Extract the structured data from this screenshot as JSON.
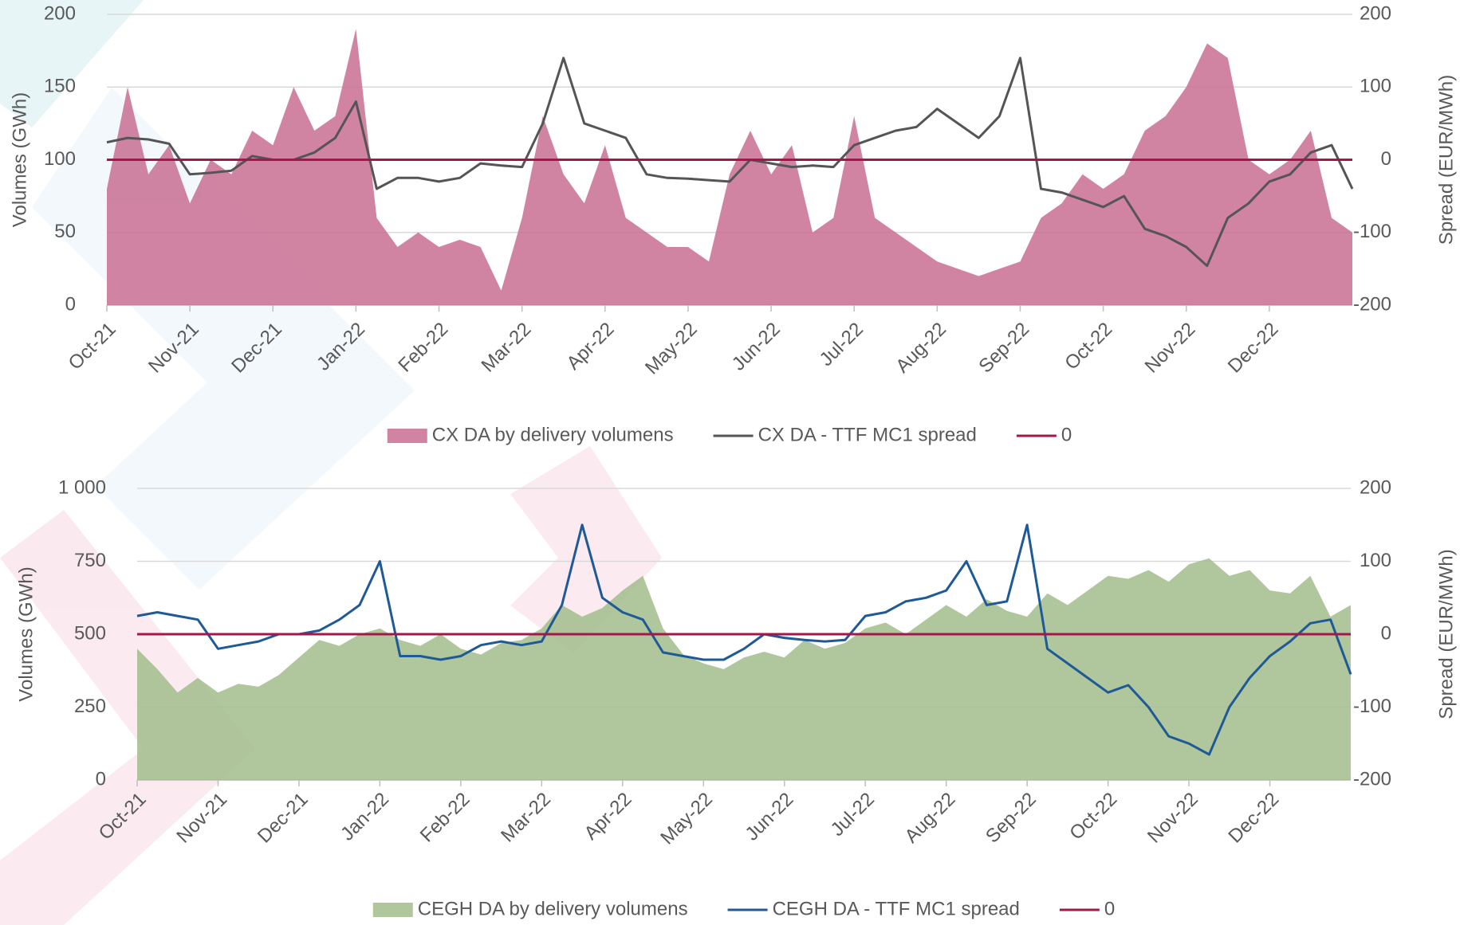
{
  "chart_data": [
    {
      "type": "combo",
      "ylabel": "Volumes (GWh)",
      "y2label": "Spread (EUR/MWh)",
      "categories": [
        "Oct-21",
        null,
        null,
        null,
        "Nov-21",
        null,
        null,
        null,
        "Dec-21",
        null,
        null,
        null,
        "Jan-22",
        null,
        null,
        null,
        "Feb-22",
        null,
        null,
        null,
        "Mar-22",
        null,
        null,
        null,
        "Apr-22",
        null,
        null,
        null,
        "May-22",
        null,
        null,
        null,
        "Jun-22",
        null,
        null,
        null,
        "Jul-22",
        null,
        null,
        null,
        "Aug-22",
        null,
        null,
        null,
        "Sep-22",
        null,
        null,
        null,
        "Oct-22",
        null,
        null,
        null,
        "Nov-22",
        null,
        null,
        null,
        "Dec-22",
        null,
        null,
        null,
        null
      ],
      "ylim": [
        0,
        200
      ],
      "yticks": [
        0,
        50,
        100,
        150,
        200
      ],
      "y2lim": [
        -200,
        200
      ],
      "y2ticks": [
        -200,
        -100,
        0,
        100,
        200
      ],
      "grid": true,
      "series": [
        {
          "name": "CX DA by delivery volumens",
          "type": "area",
          "color": "#c96f92",
          "values": [
            80,
            150,
            90,
            110,
            70,
            100,
            90,
            120,
            110,
            150,
            120,
            130,
            190,
            60,
            40,
            50,
            40,
            45,
            40,
            10,
            60,
            130,
            90,
            70,
            110,
            60,
            50,
            40,
            40,
            30,
            90,
            120,
            90,
            110,
            50,
            60,
            130,
            60,
            50,
            40,
            30,
            25,
            20,
            25,
            30,
            60,
            70,
            90,
            80,
            90,
            120,
            130,
            150,
            180,
            170,
            100,
            90,
            100,
            120,
            60,
            50
          ]
        },
        {
          "name": "CX DA - TTF MC1 spread",
          "type": "line",
          "axis": "y2",
          "color": "#555555",
          "values": [
            24,
            30,
            28,
            22,
            -20,
            -18,
            -15,
            5,
            0,
            0,
            10,
            30,
            80,
            -40,
            -25,
            -25,
            -30,
            -25,
            -5,
            -8,
            -10,
            50,
            140,
            50,
            40,
            30,
            -20,
            -25,
            -26,
            -28,
            -30,
            0,
            -5,
            -10,
            -8,
            -10,
            20,
            30,
            40,
            45,
            70,
            50,
            30,
            60,
            140,
            -40,
            -45,
            -55,
            -65,
            -50,
            -95,
            -105,
            -120,
            -146,
            -80,
            -60,
            -30,
            -20,
            10,
            20,
            -40
          ]
        }
      ],
      "ref_line": {
        "name": "0",
        "value": 0,
        "axis": "y2",
        "color": "#a3174a"
      }
    },
    {
      "type": "combo",
      "ylabel": "Volumes (GWh)",
      "y2label": "Spread (EUR/MWh)",
      "categories": [
        "Oct-21",
        null,
        null,
        null,
        "Nov-21",
        null,
        null,
        null,
        "Dec-21",
        null,
        null,
        null,
        "Jan-22",
        null,
        null,
        null,
        "Feb-22",
        null,
        null,
        null,
        "Mar-22",
        null,
        null,
        null,
        "Apr-22",
        null,
        null,
        null,
        "May-22",
        null,
        null,
        null,
        "Jun-22",
        null,
        null,
        null,
        "Jul-22",
        null,
        null,
        null,
        "Aug-22",
        null,
        null,
        null,
        "Sep-22",
        null,
        null,
        null,
        "Oct-22",
        null,
        null,
        null,
        "Nov-22",
        null,
        null,
        null,
        "Dec-22",
        null,
        null,
        null,
        null
      ],
      "ylim": [
        0,
        1000
      ],
      "yticks": [
        0,
        250,
        500,
        750,
        {
          "value": 1000,
          "label": "1 000"
        }
      ],
      "y2lim": [
        -200,
        200
      ],
      "y2ticks": [
        -200,
        -100,
        0,
        100,
        200
      ],
      "grid": true,
      "series": [
        {
          "name": "CEGH DA by delivery volumens",
          "type": "area",
          "color": "#a2bd8c",
          "values": [
            450,
            380,
            300,
            350,
            300,
            330,
            320,
            360,
            420,
            480,
            460,
            500,
            520,
            480,
            460,
            500,
            450,
            430,
            470,
            480,
            520,
            600,
            560,
            590,
            650,
            700,
            520,
            430,
            400,
            380,
            420,
            440,
            420,
            480,
            450,
            470,
            520,
            540,
            500,
            550,
            600,
            560,
            620,
            580,
            560,
            640,
            600,
            650,
            700,
            690,
            720,
            680,
            740,
            760,
            700,
            720,
            650,
            640,
            700,
            560,
            600
          ]
        },
        {
          "name": "CEGH DA - TTF MC1 spread",
          "type": "line",
          "axis": "y2",
          "color": "#1f5a96",
          "values": [
            25,
            30,
            25,
            20,
            -20,
            -15,
            -10,
            0,
            0,
            5,
            20,
            40,
            100,
            -30,
            -30,
            -35,
            -30,
            -15,
            -10,
            -15,
            -10,
            40,
            150,
            50,
            30,
            20,
            -25,
            -30,
            -35,
            -35,
            -20,
            0,
            -5,
            -8,
            -10,
            -8,
            25,
            30,
            45,
            50,
            60,
            100,
            40,
            45,
            150,
            -20,
            -40,
            -60,
            -80,
            -70,
            -100,
            -140,
            -150,
            -165,
            -100,
            -60,
            -30,
            -10,
            15,
            20,
            -55
          ]
        }
      ],
      "ref_line": {
        "name": "0",
        "value": 0,
        "axis": "y2",
        "color": "#a3174a"
      }
    }
  ]
}
